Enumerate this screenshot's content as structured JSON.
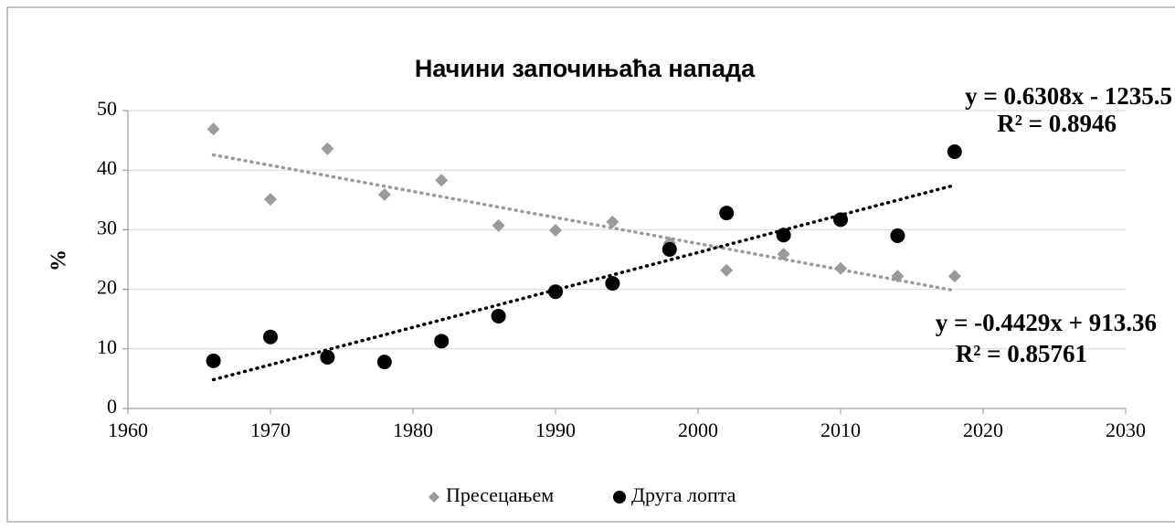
{
  "chart_data": {
    "type": "scatter",
    "title": "Начини започињаћа напада",
    "y_label": "%",
    "xlim": [
      1960,
      2030
    ],
    "xticks": [
      1960,
      1970,
      1980,
      1990,
      2000,
      2010,
      2020,
      2030
    ],
    "ylim": [
      0,
      50
    ],
    "yticks": [
      0,
      10,
      20,
      30,
      40,
      50
    ],
    "grid": true,
    "legend": "bottom",
    "trendline": "linear",
    "series": [
      {
        "name": "Пресецањем",
        "color": "#9a9a9a",
        "marker": "diamond",
        "x": [
          1966,
          1970,
          1974,
          1978,
          1982,
          1986,
          1990,
          1994,
          1998,
          2002,
          2006,
          2010,
          2014,
          2018
        ],
        "values": [
          46.9,
          35.1,
          43.6,
          35.9,
          38.3,
          30.7,
          29.9,
          31.3,
          27.8,
          23.2,
          25.9,
          23.5,
          22.2,
          22.2
        ],
        "trend_labels": [
          "y = -0.4429x + 913.36",
          "R² = 0.85761"
        ]
      },
      {
        "name": "Друга лопта",
        "color": "#000000",
        "marker": "circle",
        "x": [
          1966,
          1970,
          1974,
          1978,
          1982,
          1986,
          1990,
          1994,
          1998,
          2002,
          2006,
          2010,
          2014,
          2018
        ],
        "values": [
          8.0,
          12.0,
          8.6,
          7.8,
          11.3,
          15.5,
          19.6,
          21.0,
          26.7,
          32.8,
          29.1,
          31.7,
          29.0,
          43.1
        ],
        "trend_labels": [
          "y = 0.6308x - 1235.5",
          "R² = 0.8946"
        ]
      }
    ]
  }
}
